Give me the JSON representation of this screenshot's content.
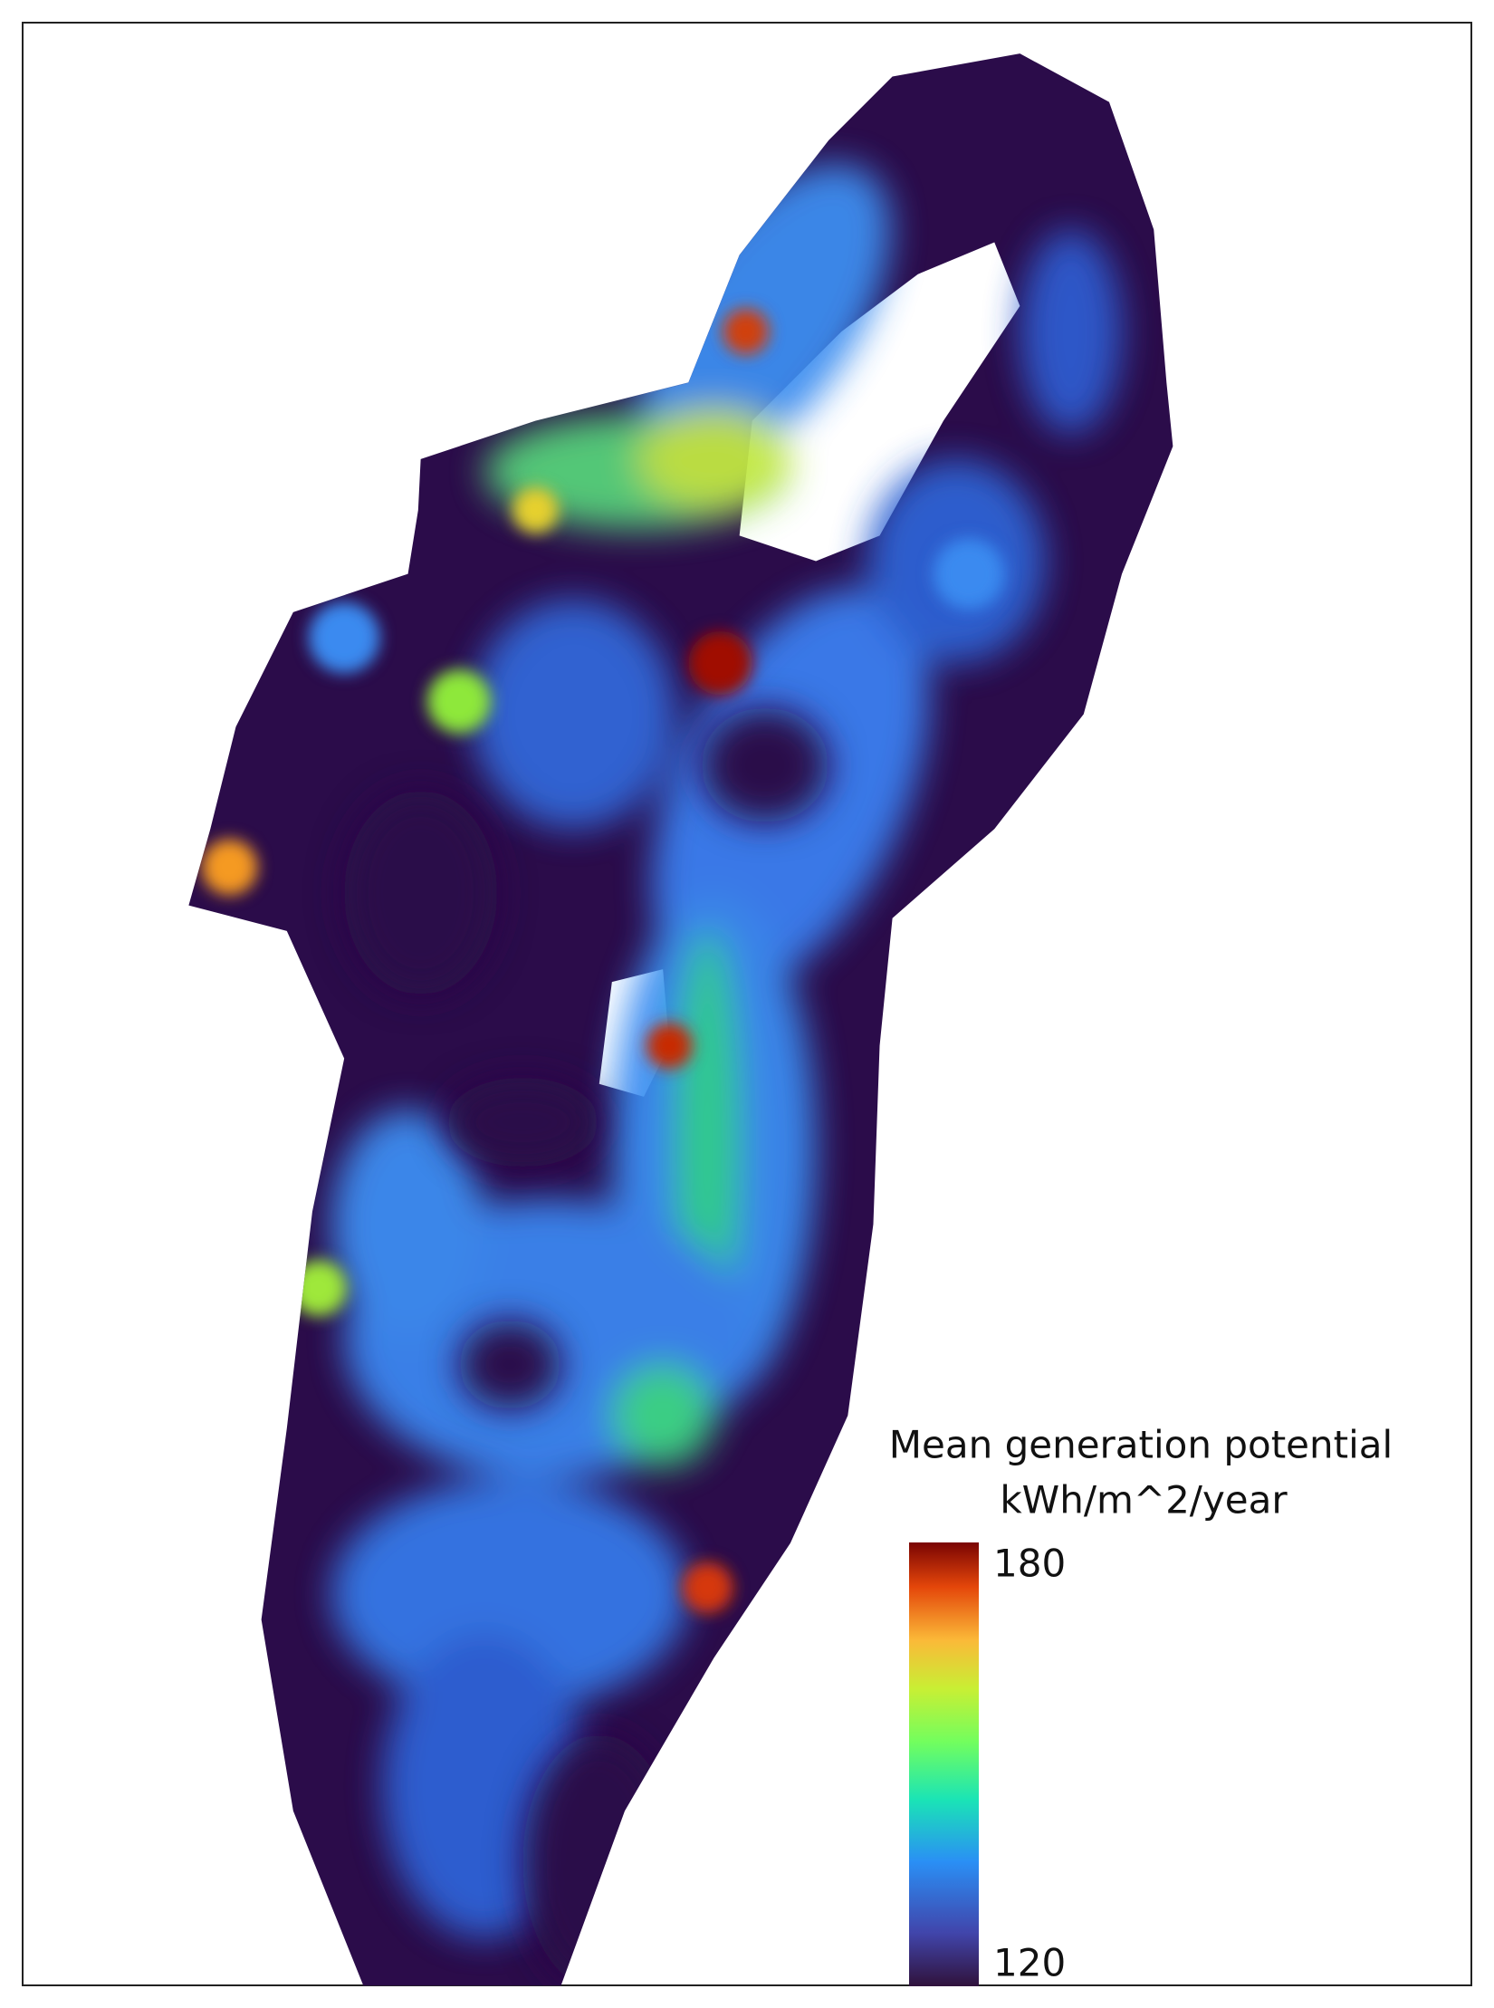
{
  "legend": {
    "title": "Mean generation potential",
    "unit": "kWh/m^2/year",
    "range": [
      120,
      180
    ],
    "ticks": [
      180,
      120
    ]
  }
}
